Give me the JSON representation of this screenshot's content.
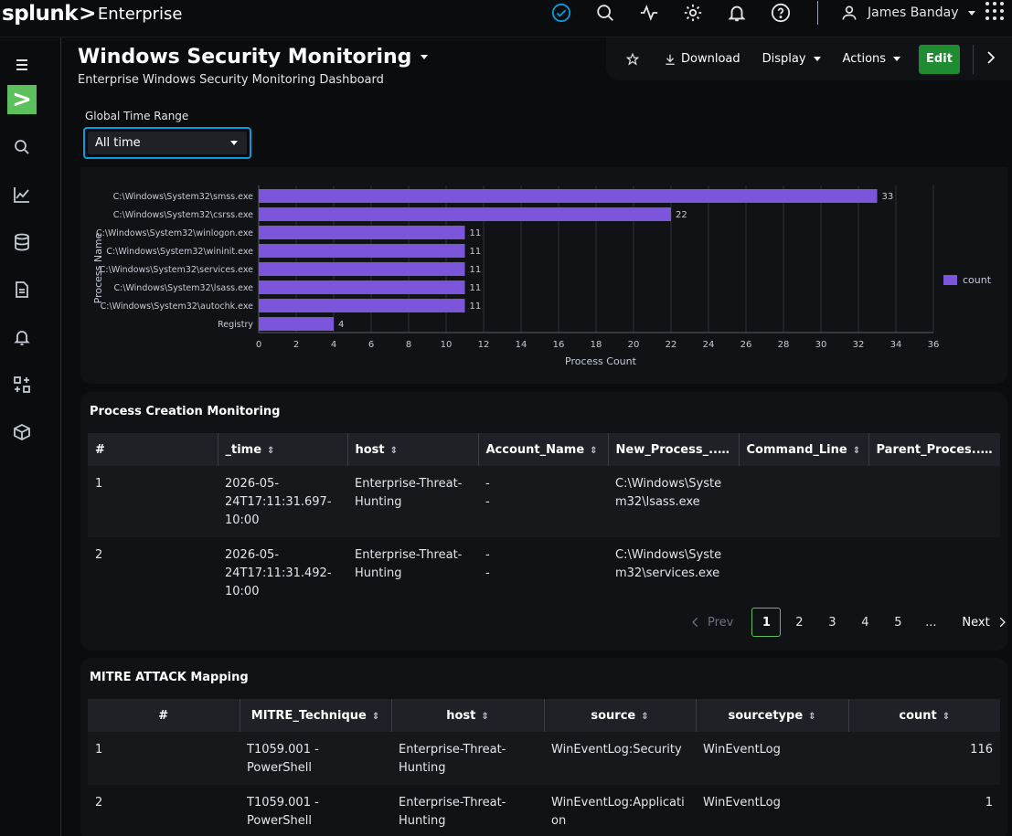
{
  "app": {
    "logo_text": "splunk",
    "logo_chevron": ">",
    "product": "Enterprise",
    "user_name": "James Banday"
  },
  "topbar_icons": [
    "check-circle-icon",
    "search-icon",
    "activity-icon",
    "gear-icon",
    "bell-icon",
    "help-icon"
  ],
  "sidebar": {
    "items": [
      "menu-icon",
      "app-icon",
      "search-icon",
      "chart-icon",
      "datasets-icon",
      "report-icon",
      "alert-bell-icon",
      "dashboard-grid-icon",
      "box-icon"
    ]
  },
  "dashboard": {
    "title": "Windows Security Monitoring",
    "description": "Enterprise Windows Security Monitoring Dashboard"
  },
  "toolbar": {
    "download_label": "Download",
    "display_label": "Display",
    "actions_label": "Actions",
    "edit_label": "Edit"
  },
  "time_range": {
    "label": "Global Time Range",
    "value": "All time"
  },
  "chart_data": {
    "type": "bar",
    "orientation": "horizontal",
    "categories": [
      "C:\\Windows\\System32\\smss.exe",
      "C:\\Windows\\System32\\csrss.exe",
      "C:\\Windows\\System32\\winlogon.exe",
      "C:\\Windows\\System32\\wininit.exe",
      "C:\\Windows\\System32\\services.exe",
      "C:\\Windows\\System32\\lsass.exe",
      "C:\\Windows\\System32\\autochk.exe",
      "Registry"
    ],
    "series": [
      {
        "name": "count",
        "values": [
          33,
          22,
          11,
          11,
          11,
          11,
          11,
          4
        ],
        "color": "#7b56db"
      }
    ],
    "xlabel": "Process Count",
    "ylabel": "Process Name",
    "xlim": [
      0,
      36
    ],
    "xticks": [
      0,
      2,
      4,
      6,
      8,
      10,
      12,
      14,
      16,
      18,
      20,
      22,
      24,
      26,
      28,
      30,
      32,
      34,
      36
    ],
    "grid": true,
    "legend": "right"
  },
  "process_panel": {
    "title": "Process Creation Monitoring",
    "columns": [
      "#",
      "_time",
      "host",
      "Account_Name",
      "New_Process_...",
      "Command_Line",
      "Parent_Proces..."
    ],
    "rows": [
      [
        "1",
        "2026-05-24T17:11:31.697-10:00",
        "Enterprise-Threat-Hunting",
        "-\n-",
        "C:\\Windows\\System32\\lsass.exe",
        "",
        ""
      ],
      [
        "2",
        "2026-05-24T17:11:31.492-10:00",
        "Enterprise-Threat-Hunting",
        "-\n-",
        "C:\\Windows\\System32\\services.exe",
        "",
        ""
      ]
    ],
    "pager": {
      "prev": "Prev",
      "pages": [
        "1",
        "2",
        "3",
        "4",
        "5",
        "..."
      ],
      "active": "1",
      "next": "Next"
    }
  },
  "mitre_panel": {
    "title": "MITRE ATTACK Mapping",
    "columns": [
      "#",
      "MITRE_Technique",
      "host",
      "source",
      "sourcetype",
      "count"
    ],
    "rows": [
      [
        "1",
        "T1059.001 - PowerShell",
        "Enterprise-Threat-Hunting",
        "WinEventLog:Security",
        "WinEventLog",
        "116"
      ],
      [
        "2",
        "T1059.001 - PowerShell",
        "Enterprise-Threat-Hunting",
        "WinEventLog:Application",
        "WinEventLog",
        "1"
      ]
    ]
  }
}
